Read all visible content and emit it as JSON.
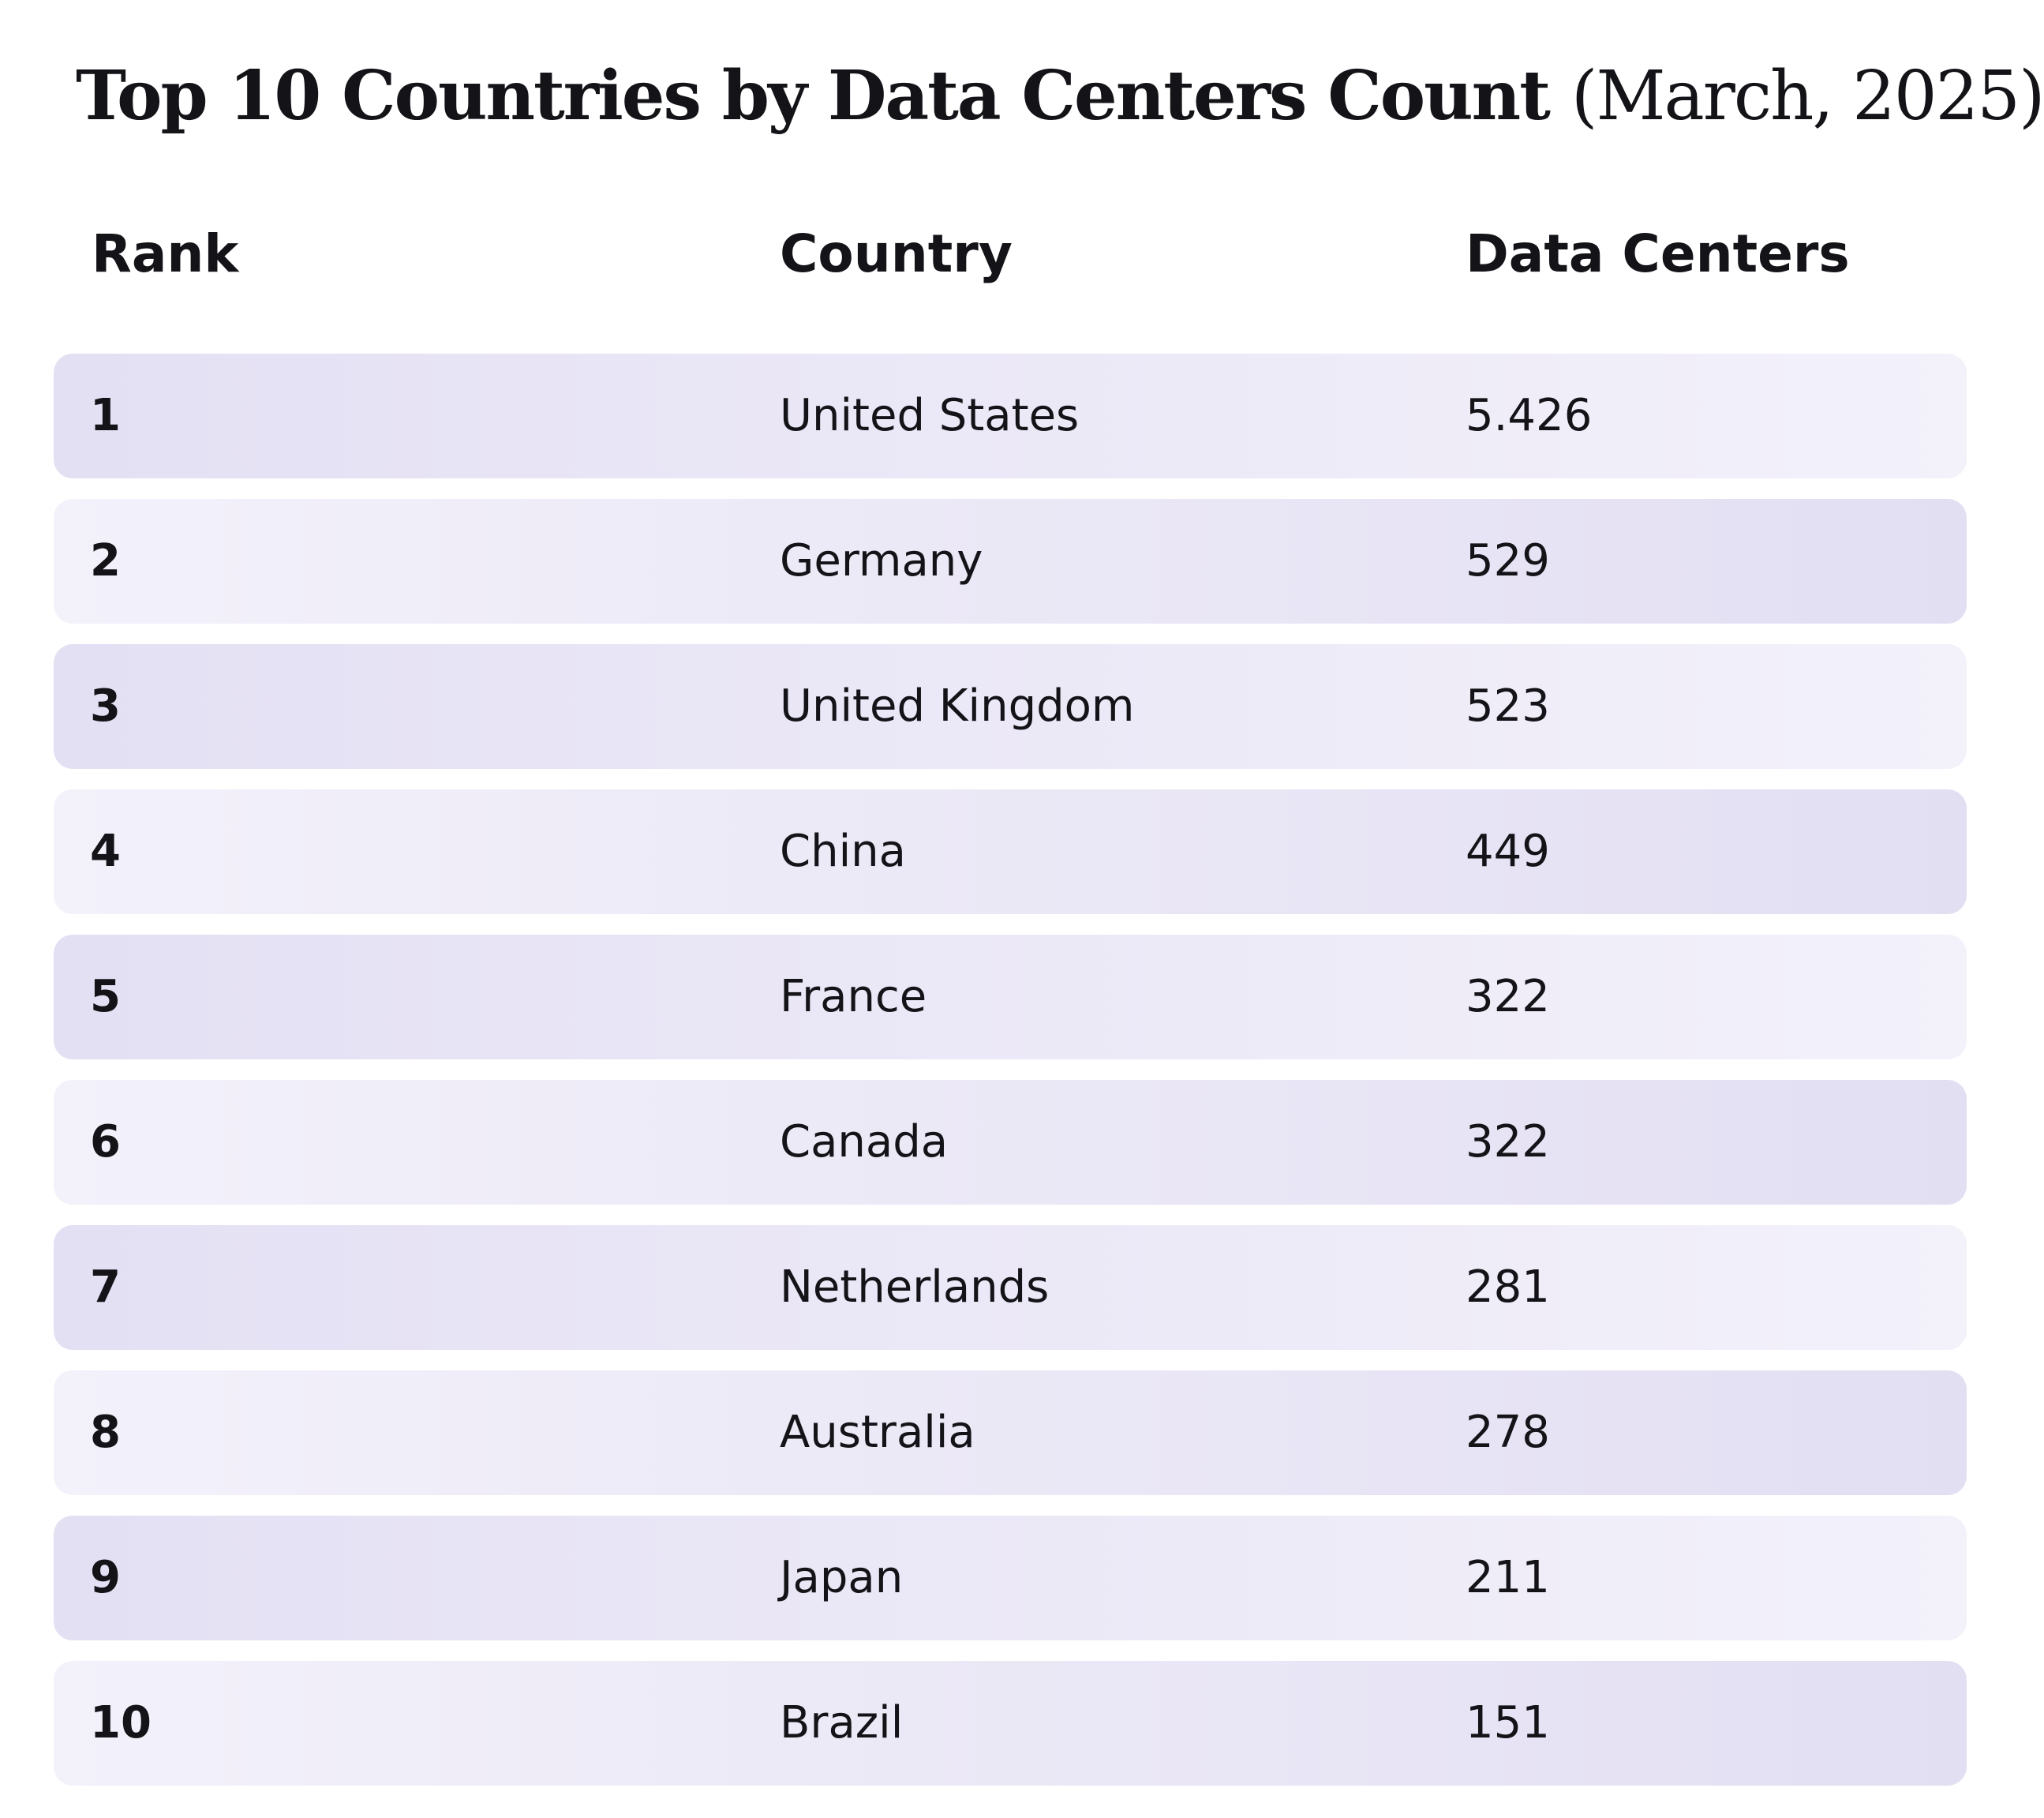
{
  "chart_data": {
    "type": "table",
    "title": "Top 10 Countries by Data Centers Count",
    "subtitle": "(March, 2025)",
    "columns": [
      "Rank",
      "Country",
      "Data Centers"
    ],
    "rows": [
      {
        "rank": "1",
        "country": "United States",
        "data_centers": "5.426"
      },
      {
        "rank": "2",
        "country": "Germany",
        "data_centers": "529"
      },
      {
        "rank": "3",
        "country": "United Kingdom",
        "data_centers": "523"
      },
      {
        "rank": "4",
        "country": "China",
        "data_centers": "449"
      },
      {
        "rank": "5",
        "country": "France",
        "data_centers": "322"
      },
      {
        "rank": "6",
        "country": "Canada",
        "data_centers": "322"
      },
      {
        "rank": "7",
        "country": "Netherlands",
        "data_centers": "281"
      },
      {
        "rank": "8",
        "country": "Australia",
        "data_centers": "278"
      },
      {
        "rank": "9",
        "country": "Japan",
        "data_centers": "211"
      },
      {
        "rank": "10",
        "country": "Brazil",
        "data_centers": "151"
      }
    ]
  },
  "colors": {
    "row_tint": "#e4e0f4",
    "row_light": "#f3f1fa",
    "text": "#141318"
  }
}
